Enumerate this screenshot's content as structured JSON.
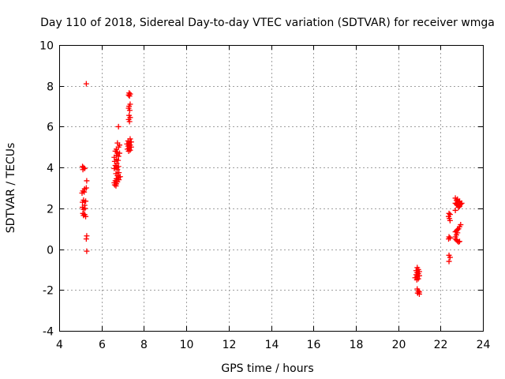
{
  "chart_data": {
    "type": "scatter",
    "title": "Day 110 of 2018, Sidereal Day-to-day VTEC variation (SDTVAR) for receiver wmga",
    "xlabel": "GPS time / hours",
    "ylabel": "SDTVAR / TECUs",
    "xlim": [
      4,
      24
    ],
    "ylim": [
      -4,
      10
    ],
    "xticks": [
      4,
      6,
      8,
      10,
      12,
      14,
      16,
      18,
      20,
      22,
      24
    ],
    "yticks": [
      -4,
      -2,
      0,
      2,
      4,
      6,
      8,
      10
    ],
    "grid": true,
    "marker": "+",
    "marker_color": "#ff0000",
    "series": [
      {
        "name": "wmga",
        "points": [
          [
            5.28,
            8.1
          ],
          [
            5.1,
            4.05
          ],
          [
            5.15,
            4.0
          ],
          [
            5.2,
            3.95
          ],
          [
            5.12,
            3.9
          ],
          [
            5.3,
            3.35
          ],
          [
            5.28,
            3.0
          ],
          [
            5.2,
            2.95
          ],
          [
            5.12,
            2.85
          ],
          [
            5.18,
            2.8
          ],
          [
            5.08,
            2.75
          ],
          [
            5.15,
            2.4
          ],
          [
            5.25,
            2.35
          ],
          [
            5.1,
            2.3
          ],
          [
            5.2,
            2.15
          ],
          [
            5.1,
            2.05
          ],
          [
            5.22,
            2.0
          ],
          [
            5.15,
            1.95
          ],
          [
            5.12,
            1.75
          ],
          [
            5.2,
            1.7
          ],
          [
            5.15,
            1.65
          ],
          [
            5.25,
            1.6
          ],
          [
            5.3,
            0.65
          ],
          [
            5.28,
            0.5
          ],
          [
            5.3,
            -0.1
          ],
          [
            6.8,
            6.0
          ],
          [
            6.75,
            5.2
          ],
          [
            6.85,
            5.1
          ],
          [
            6.8,
            5.0
          ],
          [
            6.7,
            4.9
          ],
          [
            6.65,
            4.8
          ],
          [
            6.75,
            4.75
          ],
          [
            6.85,
            4.7
          ],
          [
            6.7,
            4.6
          ],
          [
            6.8,
            4.55
          ],
          [
            6.6,
            4.5
          ],
          [
            6.7,
            4.4
          ],
          [
            6.78,
            4.35
          ],
          [
            6.62,
            4.3
          ],
          [
            6.72,
            4.2
          ],
          [
            6.65,
            4.1
          ],
          [
            6.8,
            4.05
          ],
          [
            6.7,
            4.0
          ],
          [
            6.6,
            3.95
          ],
          [
            6.75,
            3.9
          ],
          [
            6.82,
            3.75
          ],
          [
            6.68,
            3.7
          ],
          [
            6.75,
            3.6
          ],
          [
            6.88,
            3.55
          ],
          [
            6.8,
            3.5
          ],
          [
            6.7,
            3.45
          ],
          [
            6.82,
            3.4
          ],
          [
            6.65,
            3.35
          ],
          [
            6.75,
            3.3
          ],
          [
            6.6,
            3.25
          ],
          [
            6.7,
            3.2
          ],
          [
            6.62,
            3.15
          ],
          [
            6.68,
            3.1
          ],
          [
            7.3,
            7.65
          ],
          [
            7.35,
            7.6
          ],
          [
            7.28,
            7.55
          ],
          [
            7.32,
            7.5
          ],
          [
            7.35,
            7.1
          ],
          [
            7.3,
            7.0
          ],
          [
            7.28,
            6.9
          ],
          [
            7.33,
            6.8
          ],
          [
            7.3,
            6.55
          ],
          [
            7.35,
            6.45
          ],
          [
            7.28,
            6.35
          ],
          [
            7.32,
            6.25
          ],
          [
            7.35,
            5.4
          ],
          [
            7.25,
            5.3
          ],
          [
            7.4,
            5.25
          ],
          [
            7.3,
            5.2
          ],
          [
            7.2,
            5.15
          ],
          [
            7.35,
            5.1
          ],
          [
            7.25,
            5.05
          ],
          [
            7.4,
            5.0
          ],
          [
            7.3,
            4.95
          ],
          [
            7.22,
            4.9
          ],
          [
            7.35,
            4.85
          ],
          [
            7.28,
            4.8
          ],
          [
            20.9,
            -0.9
          ],
          [
            20.95,
            -1.0
          ],
          [
            20.85,
            -1.05
          ],
          [
            21.0,
            -1.1
          ],
          [
            20.9,
            -1.15
          ],
          [
            20.95,
            -1.2
          ],
          [
            20.85,
            -1.25
          ],
          [
            21.0,
            -1.3
          ],
          [
            20.9,
            -1.35
          ],
          [
            20.8,
            -1.4
          ],
          [
            20.95,
            -1.45
          ],
          [
            20.88,
            -1.5
          ],
          [
            20.9,
            -1.95
          ],
          [
            20.95,
            -2.05
          ],
          [
            21.0,
            -2.1
          ],
          [
            20.92,
            -2.15
          ],
          [
            21.0,
            -2.2
          ],
          [
            22.4,
            1.75
          ],
          [
            22.45,
            1.7
          ],
          [
            22.38,
            1.6
          ],
          [
            22.42,
            1.5
          ],
          [
            22.45,
            1.4
          ],
          [
            22.4,
            0.6
          ],
          [
            22.45,
            0.55
          ],
          [
            22.38,
            0.5
          ],
          [
            22.4,
            -0.3
          ],
          [
            22.45,
            -0.4
          ],
          [
            22.4,
            -0.6
          ],
          [
            22.7,
            2.5
          ],
          [
            22.8,
            2.45
          ],
          [
            22.75,
            2.4
          ],
          [
            22.9,
            2.35
          ],
          [
            22.85,
            2.3
          ],
          [
            22.7,
            2.25
          ],
          [
            22.95,
            2.2
          ],
          [
            22.8,
            2.15
          ],
          [
            22.9,
            2.1
          ],
          [
            23.0,
            2.25
          ],
          [
            22.75,
            2.2
          ],
          [
            22.85,
            2.05
          ],
          [
            22.7,
            1.9
          ],
          [
            22.95,
            1.2
          ],
          [
            22.9,
            1.1
          ],
          [
            22.85,
            1.0
          ],
          [
            22.8,
            0.95
          ],
          [
            22.75,
            0.9
          ],
          [
            22.7,
            0.85
          ],
          [
            22.8,
            0.8
          ],
          [
            22.75,
            0.7
          ],
          [
            22.7,
            0.6
          ],
          [
            22.7,
            0.5
          ],
          [
            22.75,
            0.45
          ],
          [
            22.8,
            0.4
          ],
          [
            22.85,
            0.35
          ],
          [
            22.9,
            0.38
          ]
        ]
      }
    ]
  }
}
